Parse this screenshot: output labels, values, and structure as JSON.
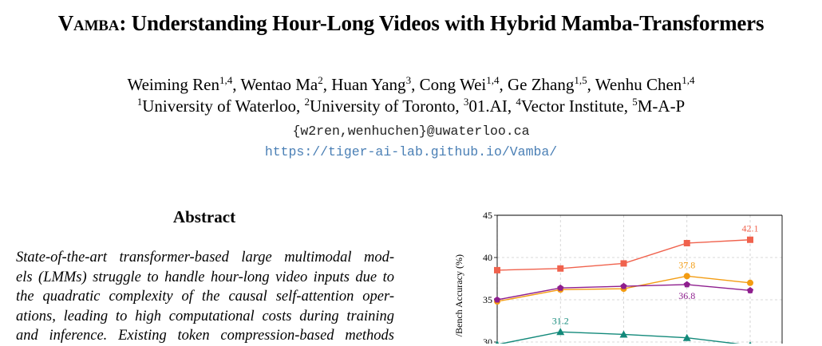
{
  "paper": {
    "title_name": "Vamba",
    "title_rest": ": Understanding Hour-Long Videos with Hybrid Mamba-Transformers",
    "authors": [
      {
        "name": "Weiming Ren",
        "aff": "1,4"
      },
      {
        "name": "Wentao Ma",
        "aff": "2"
      },
      {
        "name": "Huan Yang",
        "aff": "3"
      },
      {
        "name": "Cong Wei",
        "aff": "1,4"
      },
      {
        "name": "Ge Zhang",
        "aff": "1,5"
      },
      {
        "name": "Wenhu Chen",
        "aff": "1,4"
      }
    ],
    "affiliations": [
      {
        "num": "1",
        "name": "University of Waterloo"
      },
      {
        "num": "2",
        "name": "University of Toronto"
      },
      {
        "num": "3",
        "name": "01.AI"
      },
      {
        "num": "4",
        "name": "Vector Institute"
      },
      {
        "num": "5",
        "name": "M-A-P"
      }
    ],
    "email": "{w2ren,wenhuchen}@uwaterloo.ca",
    "url": "https://tiger-ai-lab.github.io/Vamba/",
    "abstract_heading": "Abstract",
    "abstract_lines": [
      "State-of-the-art transformer-based large multimodal mod-",
      "els (LMMs) struggle to handle hour-long video inputs due to",
      "the quadratic complexity of the causal self-attention oper-",
      "ations, leading to high computational costs during training",
      "and inference. Existing token compression-based methods"
    ]
  },
  "chart_data": {
    "type": "line",
    "ylabel": "/Bench Accuracy (%)",
    "ylim": [
      30,
      45
    ],
    "yticks": [
      "45",
      "40",
      "35",
      "30"
    ],
    "x": [
      0,
      1,
      2,
      3,
      4
    ],
    "series": [
      {
        "color": "#f0624d",
        "marker": "square",
        "values": [
          38.5,
          38.7,
          39.3,
          41.7,
          42.1
        ]
      },
      {
        "color": "#f39c12",
        "marker": "circle",
        "values": [
          34.8,
          36.2,
          36.3,
          37.8,
          37.0
        ]
      },
      {
        "color": "#8e1e8e",
        "marker": "pentagon",
        "values": [
          35.0,
          36.4,
          36.6,
          36.8,
          36.1
        ]
      },
      {
        "color": "#12897a",
        "marker": "triangle",
        "values": [
          29.7,
          31.2,
          30.9,
          30.5,
          29.6
        ]
      }
    ],
    "annotations": [
      {
        "text": "42.1",
        "x": 4,
        "y": 42.1,
        "color": "#f0624d"
      },
      {
        "text": "37.8",
        "x": 3,
        "y": 37.8,
        "color": "#f39c12"
      },
      {
        "text": "36.8",
        "x": 3,
        "y": 36.8,
        "color": "#8e1e8e"
      },
      {
        "text": "31.2",
        "x": 1,
        "y": 31.2,
        "color": "#12897a"
      }
    ]
  }
}
